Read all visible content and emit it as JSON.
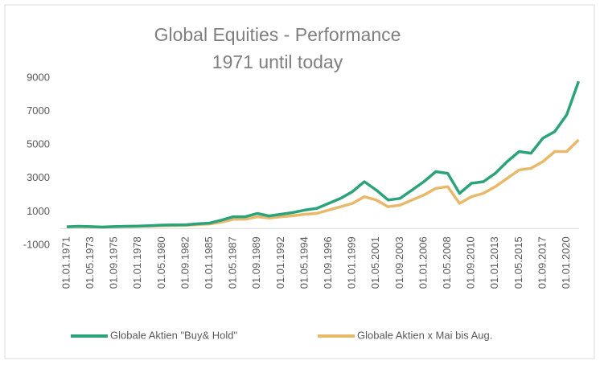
{
  "chart_data": {
    "type": "line",
    "title": "Global Equities - Performance",
    "subtitle": "1971 until today",
    "categories": [
      "01.01.1971",
      null,
      "01.05.1973",
      null,
      "01.09.1975",
      null,
      "01.01.1978",
      null,
      "01.05.1980",
      null,
      "01.09.1982",
      null,
      "01.01.1985",
      null,
      "01.05.1987",
      null,
      "01.09.1989",
      null,
      "01.01.1992",
      null,
      "01.05.1994",
      null,
      "01.09.1996",
      null,
      "01.01.1999",
      null,
      "01.05.2001",
      null,
      "01.09.2003",
      null,
      "01.01.2006",
      null,
      "01.05.2008",
      null,
      "01.09.2010",
      null,
      "01.01.2013",
      null,
      "01.05.2015",
      null,
      "01.09.2017",
      null,
      "01.01.2020",
      null
    ],
    "series": [
      {
        "name": "Globale Aktien \"Buy& Hold\"",
        "color": "#2ca37a",
        "values": [
          100,
          130,
          110,
          80,
          110,
          130,
          140,
          170,
          200,
          210,
          220,
          280,
          320,
          500,
          700,
          700,
          900,
          750,
          850,
          950,
          1100,
          1200,
          1500,
          1800,
          2200,
          2800,
          2300,
          1700,
          1800,
          2300,
          2800,
          3400,
          3300,
          2100,
          2700,
          2800,
          3300,
          4000,
          4600,
          4500,
          5400,
          5800,
          6800,
          8800
        ]
      },
      {
        "name": "Globale Aktien x Mai bis Aug.",
        "color": "#e9b96b",
        "values": [
          100,
          120,
          100,
          90,
          110,
          120,
          130,
          150,
          170,
          180,
          190,
          230,
          270,
          380,
          550,
          560,
          700,
          620,
          700,
          760,
          850,
          900,
          1100,
          1300,
          1500,
          1900,
          1700,
          1300,
          1400,
          1700,
          2000,
          2400,
          2500,
          1500,
          1900,
          2100,
          2500,
          3000,
          3500,
          3600,
          4000,
          4600,
          4600,
          5300
        ]
      }
    ],
    "ylim": [
      -1000,
      9000
    ],
    "yticks": [
      -1000,
      1000,
      3000,
      5000,
      7000,
      9000
    ],
    "grid": false,
    "legend": "bottom"
  }
}
